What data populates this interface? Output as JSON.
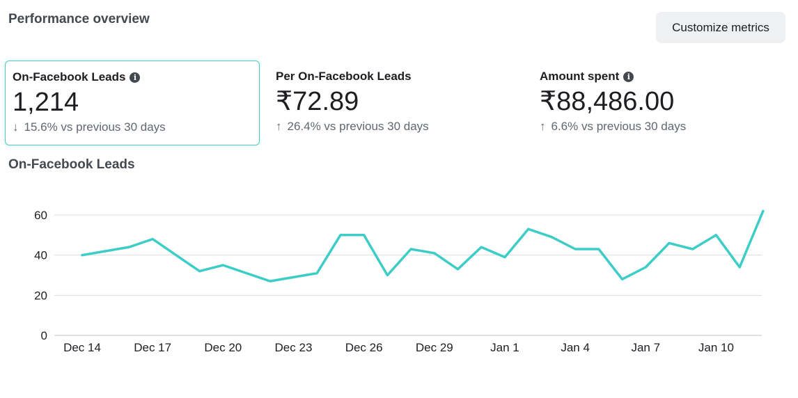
{
  "header": {
    "title": "Performance overview",
    "customize_label": "Customize metrics"
  },
  "metrics": [
    {
      "label": "On-Facebook Leads",
      "has_info": true,
      "value": "1,214",
      "direction": "down",
      "arrow": "↓",
      "change": "15.6% vs previous 30 days"
    },
    {
      "label": "Per On-Facebook Leads",
      "has_info": false,
      "value": "₹72.89",
      "direction": "up",
      "arrow": "↑",
      "change": "26.4% vs previous 30 days"
    },
    {
      "label": "Amount spent",
      "has_info": true,
      "value": "₹88,486.00",
      "direction": "up",
      "arrow": "↑",
      "change": "6.6% vs previous 30 days"
    }
  ],
  "chart_title": "On-Facebook Leads",
  "colors": {
    "line": "#3ccdc7",
    "selected_border": "#3ccdc7",
    "grid": "#dadde1"
  },
  "chart_data": {
    "type": "line",
    "title": "On-Facebook Leads",
    "xlabel": "",
    "ylabel": "",
    "ylim": [
      0,
      60
    ],
    "yticks": [
      0,
      20,
      40,
      60
    ],
    "grid": true,
    "x_tick_labels": [
      "Dec 14",
      "Dec 17",
      "Dec 20",
      "Dec 23",
      "Dec 26",
      "Dec 29",
      "Jan 1",
      "Jan 4",
      "Jan 7",
      "Jan 10"
    ],
    "x": [
      "Dec 14",
      "Dec 15",
      "Dec 16",
      "Dec 17",
      "Dec 18",
      "Dec 19",
      "Dec 20",
      "Dec 21",
      "Dec 22",
      "Dec 23",
      "Dec 24",
      "Dec 25",
      "Dec 26",
      "Dec 27",
      "Dec 28",
      "Dec 29",
      "Dec 30",
      "Dec 31",
      "Jan 1",
      "Jan 2",
      "Jan 3",
      "Jan 4",
      "Jan 5",
      "Jan 6",
      "Jan 7",
      "Jan 8",
      "Jan 9",
      "Jan 10",
      "Jan 11",
      "Jan 12"
    ],
    "series": [
      {
        "values": [
          40,
          42,
          44,
          48,
          40,
          32,
          35,
          31,
          27,
          29,
          31,
          50,
          50,
          30,
          43,
          41,
          33,
          44,
          39,
          53,
          49,
          43,
          43,
          28,
          34,
          46,
          43,
          50,
          34,
          62
        ]
      }
    ]
  }
}
